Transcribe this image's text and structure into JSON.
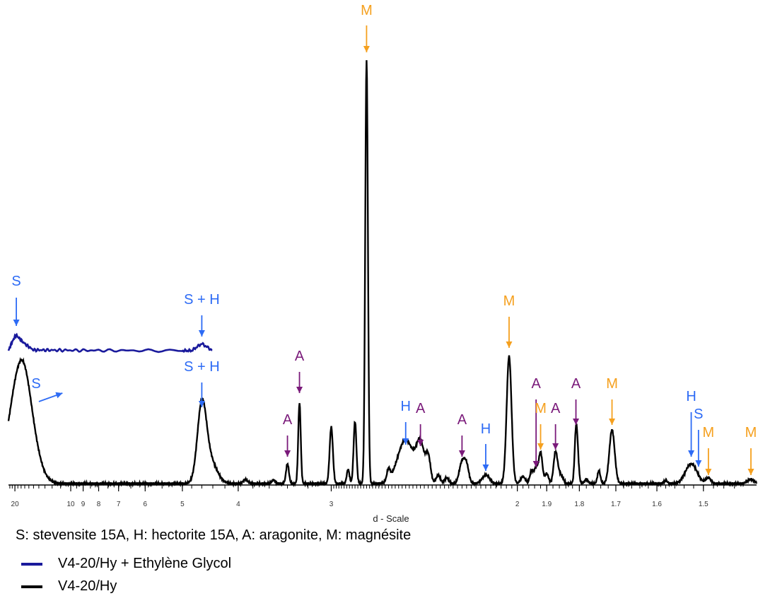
{
  "chart_data": {
    "type": "line",
    "title": "",
    "xlabel": "d - Scale",
    "ylabel": "",
    "x_scale": "reciprocal",
    "xlim": [
      22.6,
      1.4
    ],
    "grid": false,
    "ticks": [
      {
        "label": "20",
        "value": 20
      },
      {
        "label": "10",
        "value": 10
      },
      {
        "label": "9",
        "value": 9
      },
      {
        "label": "8",
        "value": 8
      },
      {
        "label": "7",
        "value": 7
      },
      {
        "label": "6",
        "value": 6
      },
      {
        "label": "5",
        "value": 5
      },
      {
        "label": "4",
        "value": 4
      },
      {
        "label": "3",
        "value": 3
      },
      {
        "label": "2",
        "value": 2
      },
      {
        "label": "1.9",
        "value": 1.9
      },
      {
        "label": "1.8",
        "value": 1.8
      },
      {
        "label": "1.7",
        "value": 1.7
      },
      {
        "label": "1.6",
        "value": 1.6
      },
      {
        "label": "1.5",
        "value": 1.5
      }
    ],
    "series": [
      {
        "name": "V4-20/Hy + Ethylène Glycol",
        "color": "#1a1a9c",
        "offset": 190,
        "baseline": 0,
        "points": [
          [
            22.6,
            0
          ],
          [
            20,
            20
          ],
          [
            19.5,
            22
          ],
          [
            17,
            10
          ],
          [
            15,
            1
          ],
          [
            4.8,
            0
          ],
          [
            4.6,
            10
          ],
          [
            4.4,
            0
          ]
        ]
      },
      {
        "name": "V4-20/Hy",
        "color": "#000000",
        "offset": 0,
        "baseline": 2,
        "peaks": [
          [
            18.0,
            170,
            3.2
          ],
          [
            17.0,
            6,
            1.2
          ],
          [
            4.6,
            104,
            0.085
          ],
          [
            4.45,
            32,
            0.12
          ],
          [
            3.9,
            6,
            0.03
          ],
          [
            3.55,
            5,
            0.02
          ],
          [
            3.4,
            28,
            0.015
          ],
          [
            3.28,
            114,
            0.012
          ],
          [
            3.0,
            80,
            0.013
          ],
          [
            2.87,
            20,
            0.01
          ],
          [
            2.82,
            88,
            0.01
          ],
          [
            2.74,
            600,
            0.009
          ],
          [
            2.6,
            16,
            0.01
          ],
          [
            2.5,
            62,
            0.045
          ],
          [
            2.42,
            52,
            0.02
          ],
          [
            2.38,
            36,
            0.012
          ],
          [
            2.33,
            12,
            0.01
          ],
          [
            2.29,
            8,
            0.01
          ],
          [
            2.22,
            30,
            0.012
          ],
          [
            2.2,
            24,
            0.01
          ],
          [
            2.12,
            12,
            0.015
          ],
          [
            2.03,
            180,
            0.009
          ],
          [
            1.98,
            10,
            0.008
          ],
          [
            1.95,
            18,
            0.006
          ],
          [
            1.935,
            22,
            0.006
          ],
          [
            1.92,
            44,
            0.006
          ],
          [
            1.9,
            14,
            0.006
          ],
          [
            1.872,
            44,
            0.006
          ],
          [
            1.86,
            12,
            0.006
          ],
          [
            1.85,
            6,
            0.005
          ],
          [
            1.81,
            68,
            0.004
          ],
          [
            1.805,
            30,
            0.004
          ],
          [
            1.78,
            6,
            0.005
          ],
          [
            1.745,
            18,
            0.004
          ],
          [
            1.71,
            76,
            0.007
          ],
          [
            1.58,
            4,
            0.004
          ],
          [
            1.525,
            28,
            0.012
          ],
          [
            1.49,
            8,
            0.005
          ],
          [
            1.41,
            6,
            0.006
          ]
        ]
      }
    ],
    "annotations": [
      {
        "text": "S",
        "color": "#2d6bf5",
        "tx": 19.5,
        "ty": 282,
        "ax": 19.5,
        "ay1": 265,
        "ay2": 225
      },
      {
        "text": "S + H",
        "color": "#2d6bf5",
        "tx": 4.6,
        "ty": 256,
        "ax": 4.6,
        "ay1": 240,
        "ay2": 210
      },
      {
        "text": "S + H",
        "color": "#2d6bf5",
        "tx": 4.6,
        "ty": 161,
        "ax": 4.6,
        "ay1": 145,
        "ay2": 110
      },
      {
        "text": "S",
        "color": "#2d6bf5",
        "tx": 14.5,
        "ty": 137,
        "ax": 10.8,
        "ax2": 14.0,
        "ay1": 118,
        "ay2": 130
      },
      {
        "text": "A",
        "color": "#7a1a7a",
        "tx": 3.28,
        "ty": 176,
        "ax": 3.28,
        "ay1": 160,
        "ay2": 130
      },
      {
        "text": "A",
        "color": "#7a1a7a",
        "tx": 3.4,
        "ty": 86,
        "ax": 3.4,
        "ay1": 70,
        "ay2": 40
      },
      {
        "text": "M",
        "color": "#f5a01e",
        "tx": 2.74,
        "ty": 665,
        "ax": 2.74,
        "ay1": 650,
        "ay2": 612
      },
      {
        "text": "H",
        "color": "#2d6bf5",
        "tx": 2.5,
        "ty": 105,
        "ax": 2.5,
        "ay1": 89,
        "ay2": 57
      },
      {
        "text": "A",
        "color": "#7a1a7a",
        "tx": 2.42,
        "ty": 102,
        "ax": 2.42,
        "ay1": 86,
        "ay2": 55
      },
      {
        "text": "A",
        "color": "#7a1a7a",
        "tx": 2.22,
        "ty": 86,
        "ax": 2.22,
        "ay1": 70,
        "ay2": 40
      },
      {
        "text": "H",
        "color": "#2d6bf5",
        "tx": 2.12,
        "ty": 73,
        "ax": 2.12,
        "ay1": 58,
        "ay2": 20
      },
      {
        "text": "M",
        "color": "#f5a01e",
        "tx": 2.03,
        "ty": 254,
        "ax": 2.03,
        "ay1": 238,
        "ay2": 194
      },
      {
        "text": "A",
        "color": "#7a1a7a",
        "tx": 1.935,
        "ty": 137,
        "ax": 1.935,
        "ay1": 121,
        "ay2": 25
      },
      {
        "text": "M",
        "color": "#f5a01e",
        "tx": 1.92,
        "ty": 102,
        "ax": 1.92,
        "ay1": 86,
        "ay2": 50
      },
      {
        "text": "A",
        "color": "#7a1a7a",
        "tx": 1.872,
        "ty": 102,
        "ax": 1.872,
        "ay1": 86,
        "ay2": 50
      },
      {
        "text": "A",
        "color": "#7a1a7a",
        "tx": 1.81,
        "ty": 137,
        "ax": 1.81,
        "ay1": 121,
        "ay2": 85
      },
      {
        "text": "M",
        "color": "#f5a01e",
        "tx": 1.71,
        "ty": 137,
        "ax": 1.71,
        "ay1": 121,
        "ay2": 85
      },
      {
        "text": "H",
        "color": "#2d6bf5",
        "tx": 1.525,
        "ty": 119,
        "ax": 1.525,
        "ay1": 103,
        "ay2": 40
      },
      {
        "text": "S",
        "color": "#2d6bf5",
        "tx": 1.51,
        "ty": 94,
        "ax": 1.51,
        "ay1": 78,
        "ay2": 26
      },
      {
        "text": "M",
        "color": "#f5a01e",
        "tx": 1.49,
        "ty": 68,
        "ax": 1.49,
        "ay1": 52,
        "ay2": 14
      },
      {
        "text": "M",
        "color": "#f5a01e",
        "tx": 1.41,
        "ty": 68,
        "ax": 1.41,
        "ay1": 52,
        "ay2": 14
      }
    ]
  },
  "caption": "S: stevensite 15A, H: hectorite 15A, A: aragonite, M: magnésite",
  "legend": [
    {
      "label": "V4-20/Hy + Ethylène Glycol",
      "color": "#1a1a9c"
    },
    {
      "label": "V4-20/Hy",
      "color": "#000000"
    }
  ]
}
